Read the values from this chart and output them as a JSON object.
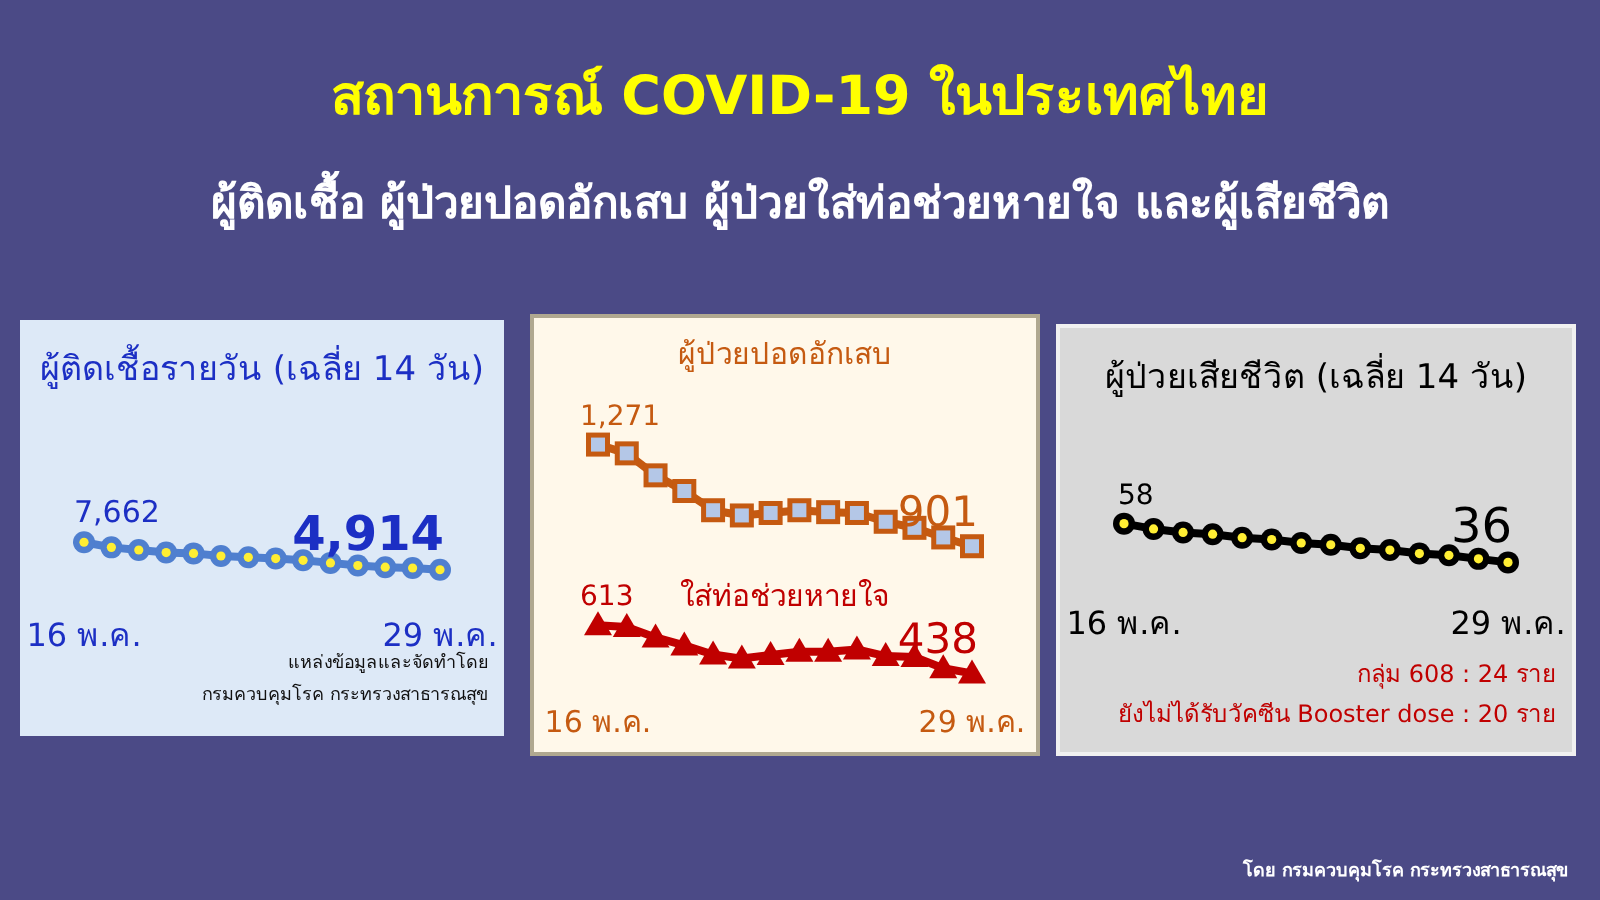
{
  "chart_data": [
    {
      "type": "line",
      "title": "ผู้ติดเชื้อรายวัน (เฉลี่ย 14 วัน)",
      "categories": [
        "16 พ.ค.",
        null,
        null,
        null,
        null,
        null,
        null,
        null,
        null,
        null,
        null,
        null,
        null,
        "29 พ.ค."
      ],
      "series": [
        {
          "color": "#4f7fcf",
          "marker": "circle",
          "values": [
            7662,
            7150,
            6890,
            6630,
            6550,
            6290,
            6160,
            6030,
            5860,
            5600,
            5340,
            5170,
            5090,
            4914
          ],
          "value_labels": [
            "7,662",
            null,
            null,
            null,
            null,
            null,
            null,
            null,
            null,
            null,
            null,
            null,
            null,
            "4,914"
          ]
        }
      ],
      "annotations": [
        "แหล่งข้อมูลและจัดทำโดย",
        "กรมควบคุมโรค กระทรวงสาธารณสุข"
      ]
    },
    {
      "type": "line",
      "categories": [
        "16 พ.ค.",
        null,
        null,
        null,
        null,
        null,
        null,
        null,
        null,
        null,
        null,
        null,
        null,
        "29 พ.ค."
      ],
      "series": [
        {
          "name": "ผู้ป่วยปอดอักเสบ",
          "color": "#c55a11",
          "marker": "square",
          "values": [
            1271,
            1239,
            1159,
            1102,
            1032,
            1013,
            1022,
            1032,
            1025,
            1022,
            990,
            968,
            933,
            901
          ],
          "value_labels": [
            "1,271",
            null,
            null,
            null,
            null,
            null,
            null,
            null,
            null,
            null,
            null,
            null,
            null,
            "901"
          ]
        },
        {
          "name": "ใส่ท่อช่วยหายใจ",
          "color": "#c00000",
          "marker": "triangle",
          "values": [
            613,
            607,
            569,
            540,
            507,
            492,
            505,
            517,
            517,
            525,
            501,
            498,
            457,
            438
          ],
          "value_labels": [
            "613",
            null,
            null,
            null,
            null,
            null,
            null,
            null,
            null,
            null,
            null,
            null,
            null,
            "438"
          ]
        }
      ]
    },
    {
      "type": "line",
      "title": "ผู้ป่วยเสียชีวิต (เฉลี่ย 14 วัน)",
      "categories": [
        "16 พ.ค.",
        null,
        null,
        null,
        null,
        null,
        null,
        null,
        null,
        null,
        null,
        null,
        null,
        "29 พ.ค."
      ],
      "series": [
        {
          "color": "#000000",
          "marker": "circle",
          "values": [
            58,
            55,
            53,
            52,
            50,
            49,
            47,
            46,
            44,
            43,
            41,
            40,
            38,
            36
          ],
          "value_labels": [
            "58",
            null,
            null,
            null,
            null,
            null,
            null,
            null,
            null,
            null,
            null,
            null,
            null,
            "36"
          ]
        }
      ],
      "annotations": [
        "กลุ่ม 608 : 24 ราย",
        "ยังไม่ได้รับวัคซีน Booster dose : 20 ราย"
      ]
    },
    {
      "type": "other",
      "title": "สถานการณ์ COVID-19 ในประเทศไทย",
      "subtitle": "ผู้ติดเชื้อ ผู้ป่วยปอดอักเสบ ผู้ป่วยใส่ท่อช่วยหายใจ และผู้เสียชีวิต",
      "annotations": [
        "โดย กรมควบคุมโรค กระทรวงสาธารณสุข"
      ]
    }
  ]
}
